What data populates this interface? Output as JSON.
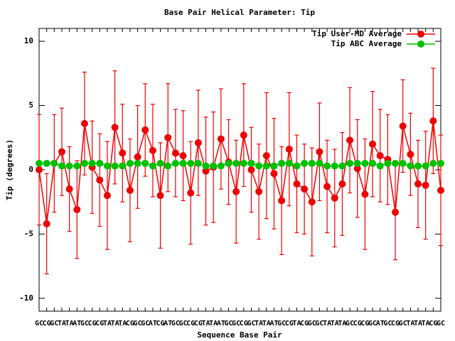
{
  "chart_data": {
    "type": "line",
    "title": "Base Pair Helical Parameter: Tip",
    "x_label": "Sequence Base Pair",
    "y_label": "Tip (degrees)",
    "categories": [
      "GC",
      "CG",
      "GC",
      "TA",
      "TA",
      "AT",
      "GC",
      "CG",
      "CG",
      "TA",
      "TA",
      "TA",
      "CG",
      "GC",
      "GC",
      "AT",
      "CG",
      "AT",
      "GC",
      "GC",
      "CG",
      "CG",
      "TA",
      "TA",
      "AT",
      "GC",
      "GC",
      "CG",
      "GC",
      "TA",
      "TA",
      "AT",
      "GC",
      "CG",
      "TA",
      "CG",
      "GC",
      "GC",
      "TA",
      "TA",
      "TA",
      "GC",
      "CG",
      "CG",
      "GC",
      "AT",
      "GC",
      "CG",
      "GC",
      "TA",
      "TA",
      "TA",
      "CG",
      "GC"
    ],
    "ylim": [
      -11,
      11
    ],
    "yticks": [
      -10,
      -5,
      0,
      5,
      10
    ],
    "legend": "top-right",
    "series": [
      {
        "name": "Tip User-MD Average",
        "color": "#ee0000",
        "values": [
          0.0,
          -4.2,
          0.5,
          1.4,
          -1.5,
          -3.1,
          3.6,
          0.2,
          -0.8,
          -2.0,
          3.3,
          1.3,
          -1.6,
          1.0,
          3.1,
          1.5,
          -2.0,
          2.5,
          1.3,
          1.1,
          -1.8,
          2.1,
          -0.1,
          0.2,
          2.4,
          0.6,
          -1.7,
          2.7,
          0.0,
          -1.7,
          1.1,
          -0.3,
          -2.4,
          1.6,
          -1.1,
          -1.5,
          -2.5,
          1.4,
          -1.3,
          -2.2,
          -1.1,
          2.3,
          0.1,
          -1.9,
          2.0,
          1.1,
          0.8,
          -3.3,
          3.4,
          1.2,
          -1.1,
          -1.2,
          3.8,
          -1.6
        ],
        "errors": [
          4.3,
          3.9,
          3.8,
          3.4,
          3.3,
          3.8,
          4.0,
          3.6,
          3.6,
          4.2,
          4.4,
          3.8,
          4.0,
          4.0,
          3.6,
          3.6,
          4.1,
          4.2,
          3.4,
          3.5,
          4.0,
          4.1,
          4.2,
          4.3,
          3.9,
          3.3,
          4.0,
          4.0,
          3.3,
          3.7,
          4.9,
          4.3,
          4.2,
          4.4,
          3.8,
          3.5,
          4.2,
          3.8,
          3.6,
          3.8,
          4.0,
          4.1,
          3.8,
          4.3,
          4.1,
          3.6,
          3.5,
          3.7,
          3.6,
          3.2,
          3.4,
          4.2,
          4.1,
          4.3
        ]
      },
      {
        "name": "Tip ABC Average",
        "color": "#00c000",
        "values": [
          0.5,
          0.5,
          0.5,
          0.3,
          0.3,
          0.3,
          0.5,
          0.5,
          0.5,
          0.3,
          0.3,
          0.3,
          0.5,
          0.5,
          0.5,
          0.3,
          0.5,
          0.3,
          0.5,
          0.5,
          0.5,
          0.5,
          0.3,
          0.3,
          0.3,
          0.5,
          0.5,
          0.5,
          0.5,
          0.3,
          0.3,
          0.3,
          0.5,
          0.5,
          0.3,
          0.5,
          0.5,
          0.5,
          0.3,
          0.3,
          0.3,
          0.5,
          0.5,
          0.5,
          0.5,
          0.3,
          0.5,
          0.5,
          0.5,
          0.3,
          0.3,
          0.3,
          0.5,
          0.5
        ]
      }
    ]
  }
}
